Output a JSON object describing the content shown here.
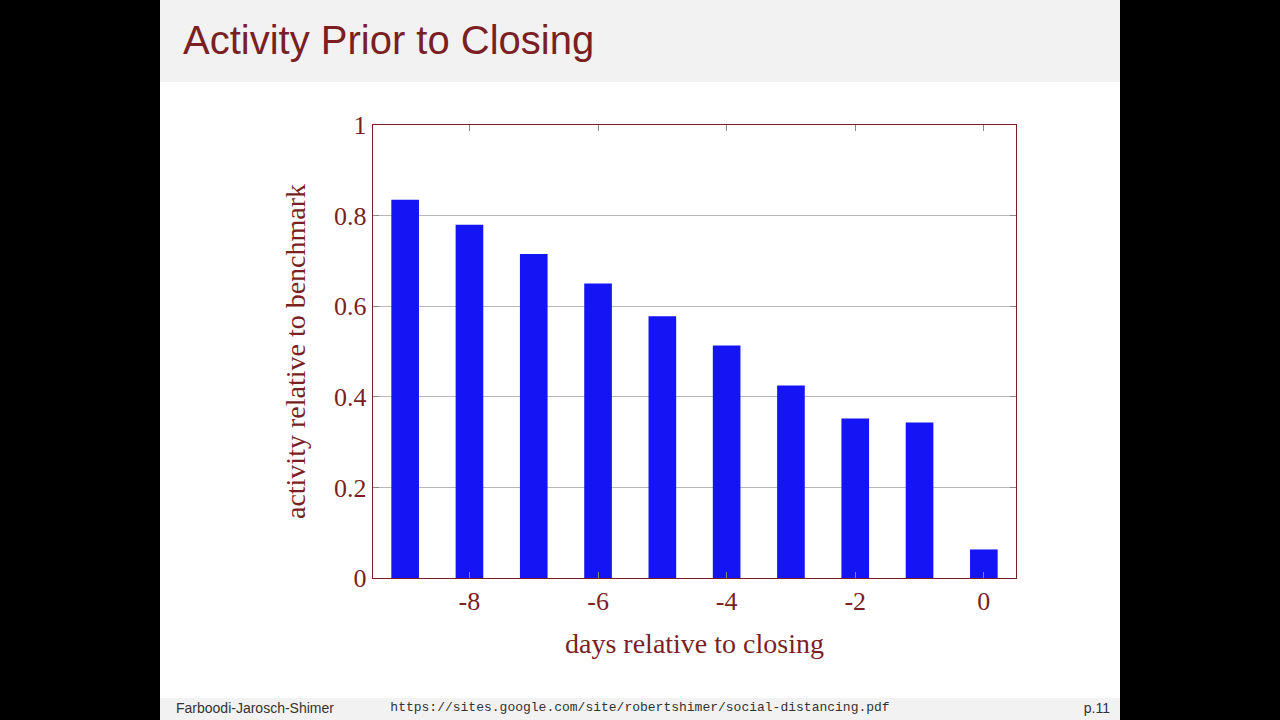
{
  "chart_data": {
    "type": "bar",
    "title": "Activity Prior to Closing",
    "x_label": "days relative to closing",
    "y_label": "activity relative to benchmark",
    "x": [
      -9,
      -8,
      -7,
      -6,
      -5,
      -4,
      -3,
      -2,
      -1,
      0
    ],
    "values": [
      0.835,
      0.78,
      0.715,
      0.65,
      0.578,
      0.513,
      0.425,
      0.352,
      0.343,
      0.063
    ],
    "color": "#1414f5",
    "xlim": [
      -9.5,
      0.5
    ],
    "xticks": [
      -8,
      -6,
      -4,
      -2,
      0
    ],
    "ylim": [
      0,
      1
    ],
    "yticks": [
      0,
      0.2,
      0.4,
      0.6,
      0.8,
      1
    ],
    "grid": true
  },
  "footer": {
    "left": "Farboodi-Jarosch-Shimer",
    "center": "https://sites.google.com/site/robertshimer/social-distancing.pdf",
    "right": "p.11"
  }
}
